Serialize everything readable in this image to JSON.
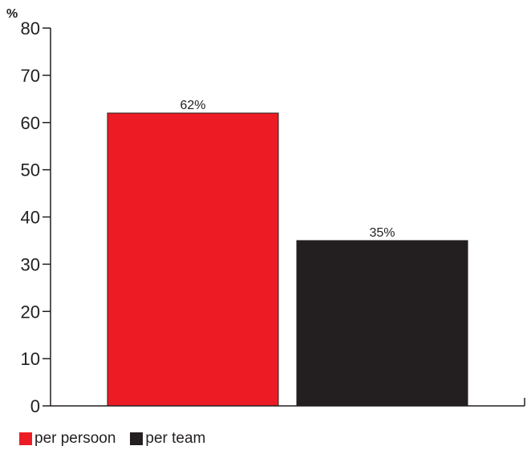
{
  "chart_data": {
    "type": "bar",
    "ylabel": "%",
    "ylim": [
      0,
      80
    ],
    "yticks": [
      0,
      10,
      20,
      30,
      40,
      50,
      60,
      70,
      80
    ],
    "categories": [
      "per persoon",
      "per team"
    ],
    "values": [
      62,
      35
    ],
    "data_labels": [
      "62%",
      "35%"
    ],
    "colors": [
      "#ed1c24",
      "#231f20"
    ],
    "grid": false,
    "legend": {
      "placement": "bottom-left",
      "items": [
        {
          "label": "per persoon",
          "color": "#ed1c24"
        },
        {
          "label": "per team",
          "color": "#231f20"
        }
      ]
    }
  }
}
